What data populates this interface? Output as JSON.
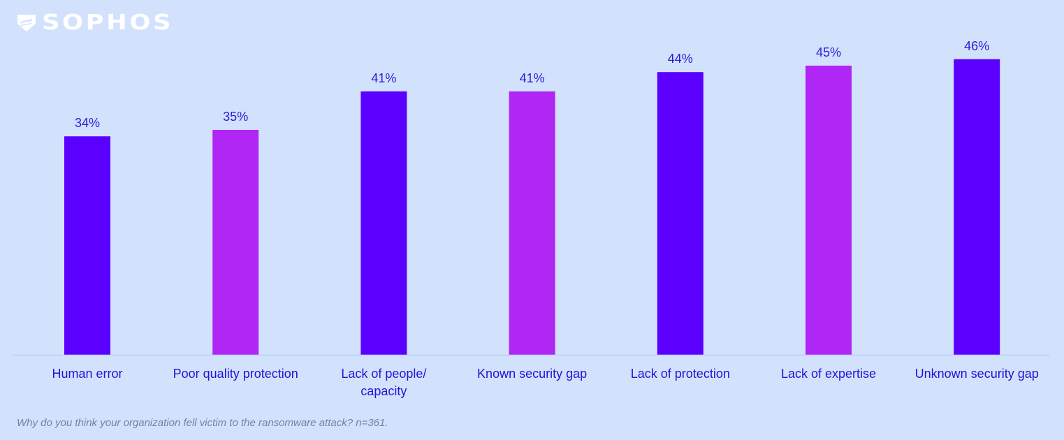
{
  "brand": {
    "name": "SOPHOS",
    "logo_icon": "shield-icon",
    "logo_color": "#ffffff"
  },
  "colors": {
    "background": "#d2e2fd",
    "bar_primary": "#5b00ff",
    "bar_secondary": "#b026f5",
    "label_text": "#2412d8",
    "baseline": "#bcd2f7",
    "footnote_text": "#6f84a4"
  },
  "chart_data": {
    "type": "bar",
    "title": "",
    "xlabel": "",
    "ylabel": "",
    "ylim": [
      0,
      50
    ],
    "grid": false,
    "legend": "none",
    "categories": [
      "Human error",
      "Poor quality protection",
      "Lack of people/ capacity",
      "Known security gap",
      "Lack of protection",
      "Lack of expertise",
      "Unknown security gap"
    ],
    "category_lines": [
      [
        "Human error"
      ],
      [
        "Poor quality protection"
      ],
      [
        "Lack of people/",
        "capacity"
      ],
      [
        "Known security gap"
      ],
      [
        "Lack of protection"
      ],
      [
        "Lack of expertise"
      ],
      [
        "Unknown security gap"
      ]
    ],
    "values": [
      34,
      35,
      41,
      41,
      44,
      45,
      46
    ],
    "value_labels": [
      "34%",
      "35%",
      "41%",
      "41%",
      "44%",
      "45%",
      "46%"
    ],
    "bar_colors": [
      "#5b00ff",
      "#b026f5",
      "#5b00ff",
      "#b026f5",
      "#5b00ff",
      "#b026f5",
      "#5b00ff"
    ]
  },
  "footnote": "Why do you think your organization fell victim to the ransomware attack? n=361."
}
